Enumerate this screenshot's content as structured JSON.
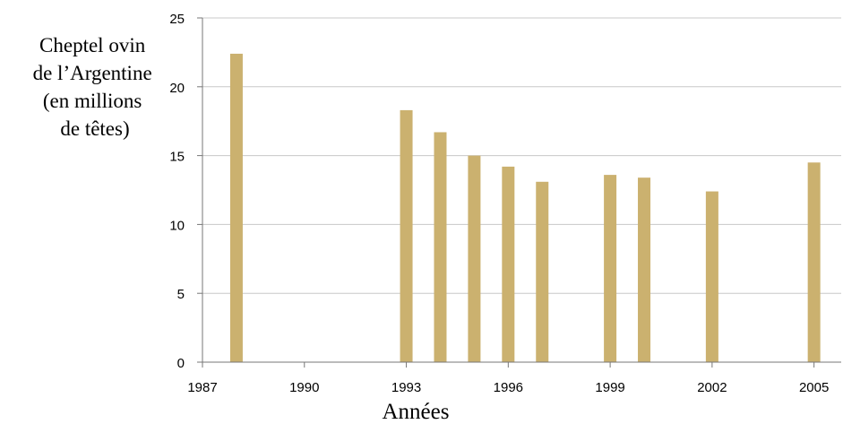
{
  "chart_data": {
    "type": "bar",
    "title": "",
    "ylabel_lines": [
      "Cheptel ovin",
      "de l’Argentine",
      "(en millions",
      "de têtes)"
    ],
    "xlabel": "Années",
    "x": [
      1988,
      1993,
      1994,
      1995,
      1996,
      1997,
      1999,
      2000,
      2002,
      2005
    ],
    "values": [
      22.4,
      18.3,
      16.7,
      15.0,
      14.2,
      13.1,
      13.6,
      13.4,
      12.4,
      14.5
    ],
    "xlim": [
      1987,
      2005.8
    ],
    "ylim": [
      0,
      25
    ],
    "xticks": [
      1987,
      1990,
      1993,
      1996,
      1999,
      2002,
      2005
    ],
    "yticks": [
      0,
      5,
      10,
      15,
      20,
      25
    ],
    "grid": true,
    "bar_color": "#CBB16F"
  }
}
